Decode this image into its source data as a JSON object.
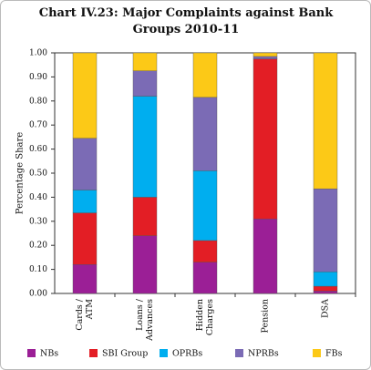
{
  "chart_data": {
    "type": "stacked_bar",
    "title": "Chart IV.23: Major Complaints against Bank Groups 2010-11",
    "y_label": "Percentage Share",
    "categories": [
      [
        "Cards /",
        "ATM"
      ],
      [
        "Loans /",
        "Advances"
      ],
      [
        "Hidden",
        "Charges"
      ],
      [
        "Pension"
      ],
      [
        "DSA"
      ]
    ],
    "series": [
      {
        "name": "NBs",
        "color": "#9b1f96",
        "values": [
          0.12,
          0.24,
          0.13,
          0.31,
          0.01
        ]
      },
      {
        "name": "SBI Group",
        "color": "#e31e25",
        "values": [
          0.215,
          0.16,
          0.09,
          0.665,
          0.02
        ]
      },
      {
        "name": "OPRBs",
        "color": "#00aeef",
        "values": [
          0.095,
          0.42,
          0.29,
          0,
          0.06
        ]
      },
      {
        "name": "NPRBs",
        "color": "#7b6bb5",
        "values": [
          0.215,
          0.105,
          0.305,
          0.01,
          0.345
        ]
      },
      {
        "name": "FBs",
        "color": "#fcc917",
        "values": [
          0.355,
          0.075,
          0.185,
          0.015,
          0.565
        ]
      }
    ],
    "ylim": [
      0,
      1
    ],
    "yticks": [
      {
        "value": 0,
        "label": "0.00"
      },
      {
        "value": 0.1,
        "label": "0.10"
      },
      {
        "value": 0.2,
        "label": "0.20"
      },
      {
        "value": 0.3,
        "label": "0.30"
      },
      {
        "value": 0.4,
        "label": "0.40"
      },
      {
        "value": 0.5,
        "label": "0.50"
      },
      {
        "value": 0.6,
        "label": "0.60"
      },
      {
        "value": 0.7,
        "label": "0.70"
      },
      {
        "value": 0.8,
        "label": "0.80"
      },
      {
        "value": 0.9,
        "label": "0.90"
      },
      {
        "value": 1,
        "label": "1.00"
      }
    ],
    "legend": "bottom"
  }
}
